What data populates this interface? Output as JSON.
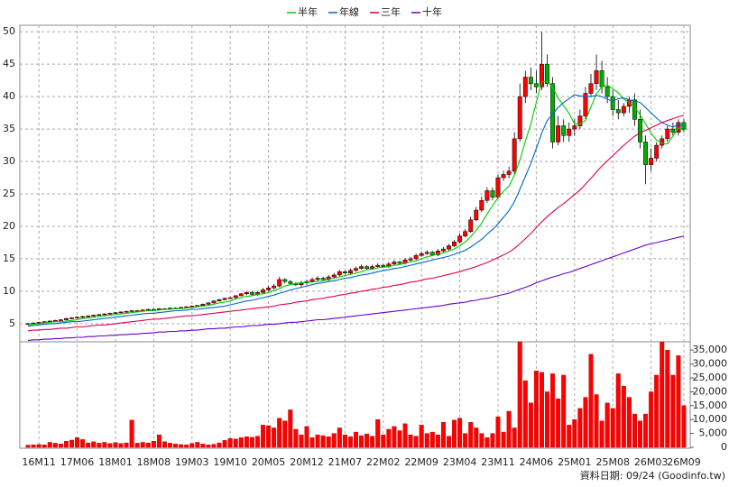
{
  "chart_data": {
    "type": "candlestick",
    "categories": [
      null,
      null,
      "16M11",
      null,
      null,
      null,
      null,
      null,
      null,
      "17M06",
      null,
      null,
      null,
      null,
      null,
      null,
      "18M01",
      null,
      null,
      null,
      null,
      null,
      null,
      "18M08",
      null,
      null,
      null,
      null,
      null,
      null,
      "19M03",
      null,
      null,
      null,
      null,
      null,
      null,
      "19M10",
      null,
      null,
      null,
      null,
      null,
      null,
      "20M05",
      null,
      null,
      null,
      null,
      null,
      null,
      "20M12",
      null,
      null,
      null,
      null,
      null,
      null,
      "21M07",
      null,
      null,
      null,
      null,
      null,
      null,
      "22M02",
      null,
      null,
      null,
      null,
      null,
      null,
      "22M09",
      null,
      null,
      null,
      null,
      null,
      null,
      "23M04",
      null,
      null,
      null,
      null,
      null,
      null,
      "23M11",
      null,
      null,
      null,
      null,
      null,
      null,
      "24M06",
      null,
      null,
      null,
      null,
      null,
      null,
      "25M01",
      null,
      null,
      null,
      null,
      null,
      null,
      "25M08",
      null,
      null,
      null,
      null,
      null,
      null,
      "26M03",
      null,
      null,
      null,
      null,
      null,
      "26M09"
    ],
    "open": [
      4.9,
      5.0,
      5.1,
      5.2,
      5.3,
      5.4,
      5.5,
      5.6,
      5.8,
      5.9,
      6.0,
      6.1,
      6.2,
      6.3,
      6.4,
      6.5,
      6.6,
      6.7,
      6.8,
      6.9,
      7.0,
      7.0,
      7.1,
      7.2,
      7.2,
      7.3,
      7.3,
      7.4,
      7.4,
      7.5,
      7.6,
      7.7,
      7.8,
      8.0,
      8.2,
      8.5,
      8.7,
      8.9,
      9.0,
      9.3,
      9.6,
      9.8,
      9.5,
      9.8,
      10.2,
      10.5,
      10.8,
      11.8,
      11.5,
      11.2,
      11.0,
      11.3,
      11.5,
      11.8,
      12.0,
      11.8,
      12.2,
      12.5,
      13.0,
      12.8,
      13.2,
      13.5,
      13.8,
      13.5,
      13.8,
      14.0,
      13.8,
      14.2,
      14.5,
      14.3,
      14.8,
      15.0,
      15.5,
      15.8,
      16.0,
      15.6,
      16.2,
      16.5,
      17.0,
      17.6,
      18.5,
      19.2,
      21.0,
      22.5,
      24.0,
      25.5,
      24.5,
      27.5,
      28.0,
      28.5,
      33.5,
      40.0,
      43.0,
      42.0,
      41.5,
      45.0,
      42.0,
      33.0,
      35.5,
      34.0,
      35.0,
      35.5,
      37.0,
      40.5,
      42.0,
      44.0,
      41.5,
      40.0,
      38.0,
      37.5,
      38.5,
      39.5,
      36.5,
      33.0,
      29.5,
      30.5,
      32.5,
      33.5,
      35.0,
      34.5,
      36.0
    ],
    "high": [
      5.1,
      5.2,
      5.3,
      5.4,
      5.5,
      5.6,
      5.7,
      5.9,
      6.0,
      6.1,
      6.2,
      6.3,
      6.4,
      6.5,
      6.6,
      6.7,
      6.8,
      6.9,
      7.0,
      7.1,
      7.1,
      7.2,
      7.3,
      7.3,
      7.4,
      7.4,
      7.5,
      7.5,
      7.6,
      7.7,
      7.8,
      7.9,
      8.1,
      8.3,
      8.6,
      8.8,
      9.0,
      9.1,
      9.4,
      9.7,
      10.0,
      10.0,
      10.0,
      10.5,
      10.8,
      11.1,
      12.2,
      12.0,
      11.7,
      11.4,
      11.6,
      11.8,
      12.1,
      12.3,
      12.2,
      12.5,
      12.8,
      13.3,
      13.2,
      13.5,
      13.8,
      14.1,
      14.0,
      14.1,
      14.3,
      14.2,
      14.5,
      14.8,
      14.7,
      15.1,
      15.3,
      15.8,
      16.1,
      16.3,
      16.2,
      16.5,
      16.8,
      17.3,
      17.9,
      18.9,
      19.6,
      21.5,
      23.0,
      24.6,
      26.0,
      26.0,
      28.0,
      28.6,
      29.2,
      34.5,
      42.0,
      44.0,
      44.5,
      44.0,
      50.0,
      46.5,
      43.0,
      37.0,
      36.5,
      36.0,
      36.5,
      38.0,
      41.5,
      43.5,
      46.5,
      45.5,
      43.0,
      41.0,
      39.5,
      39.0,
      40.0,
      40.5,
      38.0,
      34.0,
      32.0,
      33.0,
      34.0,
      35.5,
      36.0,
      36.5,
      36.5
    ],
    "low": [
      4.8,
      4.9,
      5.0,
      5.1,
      5.2,
      5.3,
      5.4,
      5.5,
      5.7,
      5.8,
      5.9,
      6.0,
      6.1,
      6.2,
      6.3,
      6.4,
      6.5,
      6.6,
      6.7,
      6.8,
      6.9,
      6.9,
      7.0,
      7.1,
      7.1,
      7.2,
      7.2,
      7.3,
      7.3,
      7.4,
      7.5,
      7.6,
      7.7,
      7.9,
      8.1,
      8.4,
      8.6,
      8.8,
      8.9,
      9.2,
      9.4,
      9.3,
      9.3,
      9.6,
      10.0,
      10.3,
      10.6,
      11.2,
      11.0,
      10.8,
      10.7,
      11.0,
      11.3,
      11.6,
      11.6,
      11.6,
      12.0,
      12.3,
      12.6,
      12.6,
      13.0,
      13.3,
      13.3,
      13.3,
      13.6,
      13.6,
      13.6,
      14.0,
      14.1,
      14.1,
      14.6,
      14.8,
      15.3,
      15.6,
      15.4,
      15.4,
      16.0,
      16.3,
      16.8,
      17.4,
      18.3,
      19.0,
      20.8,
      22.2,
      23.6,
      24.0,
      24.2,
      27.0,
      27.4,
      28.0,
      33.0,
      39.0,
      41.0,
      40.5,
      41.0,
      41.5,
      32.0,
      32.5,
      33.0,
      33.0,
      34.0,
      35.0,
      36.5,
      40.0,
      41.0,
      40.5,
      39.0,
      37.0,
      36.5,
      37.0,
      37.5,
      35.5,
      32.0,
      26.5,
      28.5,
      30.0,
      32.0,
      33.0,
      34.0,
      34.0,
      34.5
    ],
    "close": [
      5.0,
      5.1,
      5.2,
      5.3,
      5.4,
      5.5,
      5.6,
      5.8,
      5.9,
      6.0,
      6.1,
      6.2,
      6.3,
      6.4,
      6.5,
      6.6,
      6.7,
      6.8,
      6.9,
      7.0,
      7.0,
      7.1,
      7.2,
      7.2,
      7.3,
      7.3,
      7.4,
      7.4,
      7.5,
      7.6,
      7.7,
      7.8,
      8.0,
      8.2,
      8.5,
      8.7,
      8.9,
      9.0,
      9.3,
      9.6,
      9.8,
      9.5,
      9.8,
      10.2,
      10.5,
      10.8,
      11.8,
      11.5,
      11.2,
      11.0,
      11.3,
      11.5,
      11.8,
      12.0,
      11.8,
      12.2,
      12.5,
      13.0,
      12.8,
      13.2,
      13.5,
      13.8,
      13.5,
      13.8,
      14.0,
      13.8,
      14.2,
      14.5,
      14.3,
      14.8,
      15.0,
      15.5,
      15.8,
      16.0,
      15.6,
      16.2,
      16.5,
      17.0,
      17.6,
      18.5,
      19.2,
      21.0,
      22.5,
      24.0,
      25.5,
      24.5,
      27.5,
      28.0,
      28.5,
      33.5,
      40.0,
      43.0,
      42.0,
      41.5,
      45.0,
      42.0,
      33.0,
      35.5,
      34.0,
      35.0,
      35.5,
      37.0,
      40.5,
      42.0,
      44.0,
      41.5,
      40.0,
      38.0,
      37.5,
      38.5,
      39.5,
      36.5,
      33.0,
      29.5,
      30.5,
      32.5,
      33.5,
      35.0,
      34.5,
      36.0,
      35.0
    ],
    "up_color": "#ff0000",
    "down_color": "#00b000",
    "series": [
      {
        "name": "半年",
        "color": "#00cc00",
        "values": [
          4.8,
          4.9,
          5.0,
          5.1,
          5.2,
          5.3,
          5.3,
          5.4,
          5.5,
          5.6,
          5.8,
          5.9,
          6.0,
          6.1,
          6.2,
          6.3,
          6.4,
          6.5,
          6.6,
          6.7,
          6.8,
          6.9,
          7.0,
          7.0,
          7.1,
          7.2,
          7.2,
          7.3,
          7.3,
          7.4,
          7.5,
          7.6,
          7.7,
          7.8,
          8.0,
          8.2,
          8.3,
          8.5,
          8.8,
          9.0,
          9.2,
          9.3,
          9.5,
          9.6,
          9.8,
          10.1,
          10.4,
          10.8,
          11.0,
          11.2,
          11.3,
          11.4,
          11.4,
          11.5,
          11.6,
          11.8,
          12.0,
          12.2,
          12.4,
          12.6,
          12.8,
          13.0,
          13.3,
          13.4,
          13.6,
          13.7,
          13.8,
          14.0,
          14.1,
          14.3,
          14.5,
          14.7,
          15.0,
          15.3,
          15.5,
          15.7,
          15.9,
          16.2,
          16.5,
          17.0,
          17.6,
          18.4,
          19.4,
          20.5,
          21.9,
          23.2,
          24.4,
          25.4,
          26.2,
          27.9,
          30.2,
          33.1,
          35.8,
          39.1,
          42.3,
          42.3,
          41.4,
          39.8,
          38.6,
          37.4,
          35.8,
          35.8,
          36.3,
          38.4,
          40.4,
          41.5,
          41.8,
          41.2,
          40.6,
          39.6,
          39.1,
          38.4,
          37.2,
          35.8,
          34.4,
          33.3,
          32.8,
          32.7,
          33.9,
          35.2,
          34.8
        ]
      },
      {
        "name": "年線",
        "color": "#0066cc",
        "values": [
          4.6,
          4.7,
          4.8,
          4.9,
          5.0,
          5.0,
          5.1,
          5.2,
          5.3,
          5.3,
          5.4,
          5.5,
          5.6,
          5.7,
          5.8,
          5.9,
          6.0,
          6.1,
          6.2,
          6.3,
          6.4,
          6.5,
          6.6,
          6.6,
          6.7,
          6.8,
          6.9,
          7.0,
          7.0,
          7.1,
          7.2,
          7.2,
          7.3,
          7.4,
          7.5,
          7.6,
          7.7,
          7.9,
          8.1,
          8.3,
          8.5,
          8.6,
          8.8,
          9.0,
          9.2,
          9.4,
          9.7,
          9.9,
          10.2,
          10.4,
          10.6,
          10.8,
          11.0,
          11.2,
          11.3,
          11.5,
          11.6,
          11.8,
          12.0,
          12.1,
          12.3,
          12.5,
          12.6,
          12.8,
          13.0,
          13.2,
          13.3,
          13.5,
          13.6,
          13.8,
          14.0,
          14.2,
          14.4,
          14.6,
          14.8,
          15.0,
          15.2,
          15.4,
          15.7,
          16.0,
          16.3,
          16.8,
          17.4,
          18.0,
          18.8,
          19.5,
          20.4,
          21.4,
          22.4,
          23.8,
          25.7,
          27.7,
          29.7,
          32.0,
          34.4,
          36.3,
          37.3,
          38.3,
          39.1,
          39.7,
          40.3,
          40.1,
          40.0,
          40.0,
          40.2,
          40.0,
          39.6,
          39.3,
          39.7,
          39.8,
          39.5,
          39.3,
          39.1,
          38.3,
          37.5,
          36.7,
          36.0,
          35.6,
          35.3,
          35.7,
          35.5
        ]
      },
      {
        "name": "三年",
        "color": "#dd0055",
        "values": [
          3.9,
          4.0,
          4.0,
          4.1,
          4.1,
          4.2,
          4.3,
          4.3,
          4.4,
          4.5,
          4.5,
          4.6,
          4.7,
          4.8,
          4.8,
          4.9,
          5.0,
          5.1,
          5.2,
          5.3,
          5.4,
          5.5,
          5.6,
          5.7,
          5.7,
          5.8,
          5.9,
          6.0,
          6.1,
          6.2,
          6.2,
          6.3,
          6.4,
          6.5,
          6.6,
          6.7,
          6.8,
          6.9,
          7.0,
          7.1,
          7.2,
          7.3,
          7.4,
          7.5,
          7.6,
          7.7,
          7.9,
          8.0,
          8.1,
          8.3,
          8.4,
          8.5,
          8.7,
          8.8,
          8.9,
          9.1,
          9.2,
          9.4,
          9.5,
          9.7,
          9.8,
          10.0,
          10.1,
          10.3,
          10.4,
          10.6,
          10.7,
          10.9,
          11.0,
          11.2,
          11.4,
          11.5,
          11.7,
          11.9,
          12.0,
          12.2,
          12.4,
          12.6,
          12.8,
          13.0,
          13.3,
          13.5,
          13.8,
          14.1,
          14.4,
          14.8,
          15.2,
          15.6,
          16.0,
          16.6,
          17.3,
          18.1,
          18.9,
          19.8,
          20.7,
          21.5,
          22.2,
          22.9,
          23.5,
          24.2,
          24.9,
          25.6,
          26.5,
          27.4,
          28.4,
          29.3,
          30.1,
          30.9,
          31.7,
          32.5,
          33.2,
          33.9,
          34.4,
          34.8,
          35.2,
          35.6,
          36.0,
          36.3,
          36.6,
          36.9,
          37.1
        ]
      },
      {
        "name": "十年",
        "color": "#6a00cc",
        "values": [
          2.4,
          2.5,
          2.5,
          2.6,
          2.6,
          2.7,
          2.7,
          2.8,
          2.8,
          2.9,
          2.9,
          3.0,
          3.0,
          3.1,
          3.1,
          3.2,
          3.2,
          3.3,
          3.3,
          3.4,
          3.4,
          3.5,
          3.5,
          3.6,
          3.7,
          3.7,
          3.8,
          3.8,
          3.9,
          3.9,
          4.0,
          4.0,
          4.1,
          4.2,
          4.2,
          4.3,
          4.3,
          4.4,
          4.5,
          4.5,
          4.6,
          4.7,
          4.7,
          4.8,
          4.9,
          4.9,
          5.0,
          5.1,
          5.2,
          5.2,
          5.3,
          5.4,
          5.5,
          5.6,
          5.6,
          5.7,
          5.8,
          5.9,
          6.0,
          6.1,
          6.2,
          6.3,
          6.4,
          6.5,
          6.6,
          6.7,
          6.8,
          6.9,
          7.0,
          7.1,
          7.2,
          7.3,
          7.4,
          7.5,
          7.6,
          7.7,
          7.8,
          8.0,
          8.1,
          8.2,
          8.3,
          8.5,
          8.6,
          8.8,
          8.9,
          9.1,
          9.3,
          9.5,
          9.7,
          10.0,
          10.3,
          10.6,
          10.9,
          11.3,
          11.6,
          11.9,
          12.2,
          12.4,
          12.7,
          12.9,
          13.2,
          13.5,
          13.8,
          14.1,
          14.4,
          14.7,
          15.0,
          15.3,
          15.6,
          15.9,
          16.2,
          16.5,
          16.8,
          17.1,
          17.3,
          17.5,
          17.7,
          17.9,
          18.1,
          18.3,
          18.5
        ]
      }
    ],
    "ylim": [
      2.2,
      51
    ],
    "yticks": [
      5,
      10,
      15,
      20,
      25,
      30,
      35,
      40,
      45,
      50
    ],
    "grid": true,
    "volume": {
      "color": "#ff0000",
      "values": [
        800,
        900,
        1000,
        900,
        1800,
        1500,
        1200,
        2200,
        2600,
        3500,
        2800,
        1600,
        2000,
        1500,
        1800,
        1400,
        1700,
        1400,
        1600,
        9800,
        1500,
        1800,
        1600,
        2200,
        4500,
        2000,
        1500,
        1200,
        1000,
        900,
        1400,
        1800,
        1200,
        900,
        1100,
        1600,
        2500,
        3200,
        3000,
        3500,
        3800,
        3600,
        4000,
        8000,
        7800,
        7000,
        10500,
        9500,
        13500,
        6500,
        4500,
        7500,
        3500,
        4500,
        4200,
        3800,
        5000,
        7000,
        4500,
        3800,
        5500,
        4200,
        4800,
        4000,
        10000,
        4500,
        6500,
        7500,
        6000,
        8500,
        4500,
        4000,
        8000,
        5000,
        5500,
        4500,
        9000,
        4000,
        9800,
        10500,
        5000,
        9000,
        7000,
        5000,
        3500,
        5000,
        11000,
        5500,
        13000,
        7000,
        38000,
        24000,
        16000,
        27500,
        27000,
        20000,
        26500,
        17500,
        26000,
        8000,
        10000,
        14000,
        18000,
        33500,
        19000,
        9500,
        16000,
        14000,
        26500,
        22000,
        18000,
        12000,
        9500,
        12000,
        20000,
        26000,
        38000,
        35000,
        26000,
        33000,
        15000
      ],
      "ylim": [
        0,
        38000
      ],
      "yticks": [
        0,
        {
          "value": 5000,
          "label": "5,000"
        },
        {
          "value": 10000,
          "label": "10,000"
        },
        {
          "value": 15000,
          "label": "15,000"
        },
        {
          "value": 20000,
          "label": "20,000"
        },
        {
          "value": 25000,
          "label": "25,000"
        },
        {
          "value": 30000,
          "label": "30,000"
        },
        {
          "value": 35000,
          "label": "35,000"
        }
      ]
    },
    "source": "資料日期: 09/24  (Goodinfo.tw)"
  }
}
